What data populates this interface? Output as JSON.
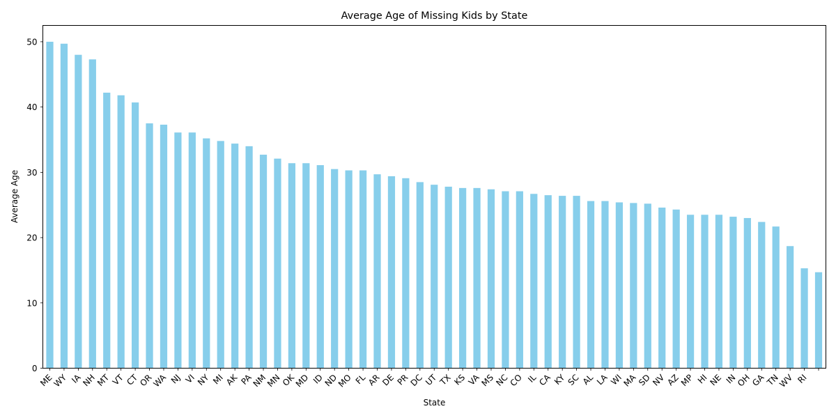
{
  "chart_data": {
    "type": "bar",
    "title": "Average Age of Missing Kids by State",
    "xlabel": "State",
    "ylabel": "Average Age",
    "ylim": [
      0,
      52.5
    ],
    "yticks": [
      0,
      10,
      20,
      30,
      40,
      50
    ],
    "grid": false,
    "bar_color": "#87CEEB",
    "categories": [
      "ME",
      "WY",
      "IA",
      "NH",
      "MT",
      "VT",
      "CT",
      "OR",
      "WA",
      "NJ",
      "VI",
      "NY",
      "MI",
      "AK",
      "PA",
      "NM",
      "MN",
      "OK",
      "MD",
      "ID",
      "ND",
      "MO",
      "FL",
      "AR",
      "DE",
      "PR",
      "DC",
      "UT",
      "TX",
      "KS",
      "VA",
      "MS",
      "NC",
      "CO",
      "IL",
      "CA",
      "KY",
      "SC",
      "AL",
      "LA",
      "WI",
      "MA",
      "SD",
      "NV",
      "AZ",
      "MP",
      "HI",
      "NE",
      "IN",
      "OH",
      "GA",
      "TN",
      "WV",
      "RI",
      ""
    ],
    "values": [
      50.0,
      49.7,
      48.0,
      47.3,
      42.2,
      41.8,
      40.7,
      37.5,
      37.3,
      36.1,
      36.1,
      35.2,
      34.8,
      34.4,
      34.0,
      32.7,
      32.1,
      31.4,
      31.4,
      31.1,
      30.5,
      30.3,
      30.3,
      29.7,
      29.4,
      29.1,
      28.5,
      28.1,
      27.8,
      27.6,
      27.6,
      27.4,
      27.1,
      27.1,
      26.7,
      26.5,
      26.4,
      26.4,
      25.6,
      25.6,
      25.4,
      25.3,
      25.2,
      24.6,
      24.3,
      23.5,
      23.5,
      23.5,
      23.2,
      23.0,
      22.4,
      21.7,
      18.7,
      15.3,
      14.7
    ]
  }
}
